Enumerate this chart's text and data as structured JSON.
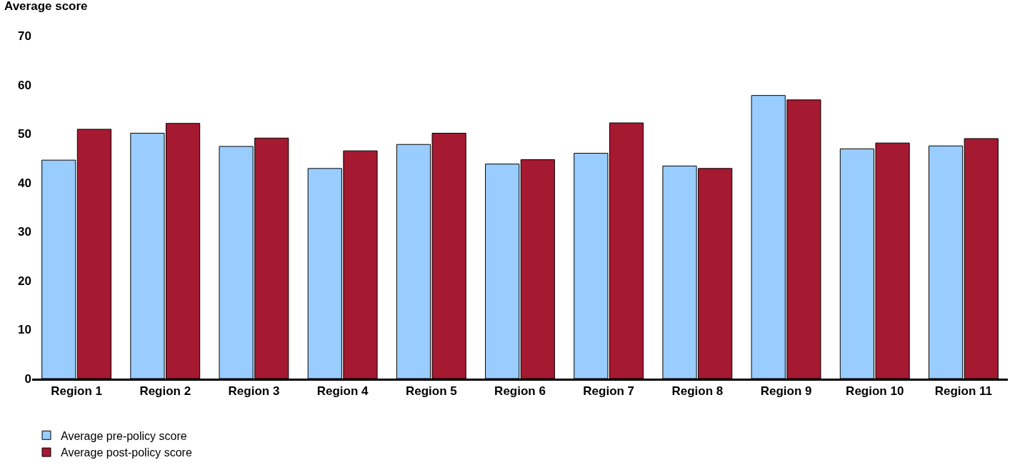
{
  "chart_data": {
    "type": "bar",
    "ylabel": "Average score",
    "categories": [
      "Region 1",
      "Region 2",
      "Region 3",
      "Region 4",
      "Region 5",
      "Region 6",
      "Region 7",
      "Region 8",
      "Region 9",
      "Region 10",
      "Region 11"
    ],
    "series": [
      {
        "name": "Average pre-policy score",
        "color": "#99ccff",
        "values": [
          44.6,
          50.1,
          47.4,
          42.9,
          47.8,
          43.8,
          46.0,
          43.4,
          57.8,
          46.9,
          47.5
        ]
      },
      {
        "name": "Average post-policy score",
        "color": "#a51931",
        "values": [
          50.9,
          52.1,
          49.1,
          46.5,
          50.1,
          44.7,
          52.2,
          42.9,
          56.9,
          48.1,
          49.0
        ]
      }
    ],
    "ylim": [
      0,
      70
    ],
    "yticks": [
      0,
      10,
      20,
      30,
      40,
      50,
      60,
      70
    ],
    "legend": "bottom left"
  }
}
